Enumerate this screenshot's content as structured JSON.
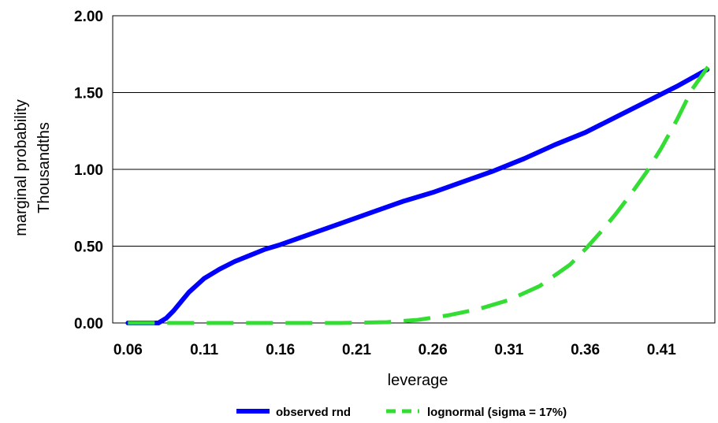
{
  "chart_data": {
    "type": "line",
    "xlabel": "leverage",
    "ylabel_lines": [
      "marginal probability",
      "Thousandths"
    ],
    "x_ticks": [
      "0.06",
      "0.11",
      "0.16",
      "0.21",
      "0.26",
      "0.31",
      "0.36",
      "0.41"
    ],
    "y_ticks": [
      "0.00",
      "0.50",
      "1.00",
      "1.50",
      "2.00"
    ],
    "xlim": [
      0.05,
      0.445
    ],
    "ylim": [
      0,
      2
    ],
    "grid": "horizontal",
    "legend_position": "bottom",
    "series": [
      {
        "name": "observed rnd",
        "color": "#0000ff",
        "style": "solid",
        "x": [
          0.06,
          0.08,
          0.085,
          0.09,
          0.095,
          0.1,
          0.11,
          0.12,
          0.13,
          0.14,
          0.15,
          0.16,
          0.18,
          0.2,
          0.22,
          0.24,
          0.26,
          0.28,
          0.3,
          0.32,
          0.34,
          0.36,
          0.38,
          0.4,
          0.42,
          0.44
        ],
        "y": [
          0.0,
          0.0,
          0.03,
          0.08,
          0.14,
          0.2,
          0.29,
          0.35,
          0.4,
          0.44,
          0.48,
          0.51,
          0.58,
          0.65,
          0.72,
          0.79,
          0.85,
          0.92,
          0.99,
          1.07,
          1.16,
          1.24,
          1.34,
          1.44,
          1.54,
          1.65
        ]
      },
      {
        "name": "lognormal (sigma = 17%)",
        "color": "#33dd33",
        "style": "dashed",
        "x": [
          0.06,
          0.2,
          0.23,
          0.25,
          0.27,
          0.29,
          0.31,
          0.33,
          0.35,
          0.36,
          0.37,
          0.38,
          0.39,
          0.4,
          0.41,
          0.42,
          0.43,
          0.445
        ],
        "y": [
          0.0,
          0.0,
          0.005,
          0.02,
          0.05,
          0.09,
          0.15,
          0.24,
          0.38,
          0.48,
          0.59,
          0.71,
          0.84,
          0.98,
          1.14,
          1.32,
          1.52,
          1.73
        ]
      }
    ]
  }
}
